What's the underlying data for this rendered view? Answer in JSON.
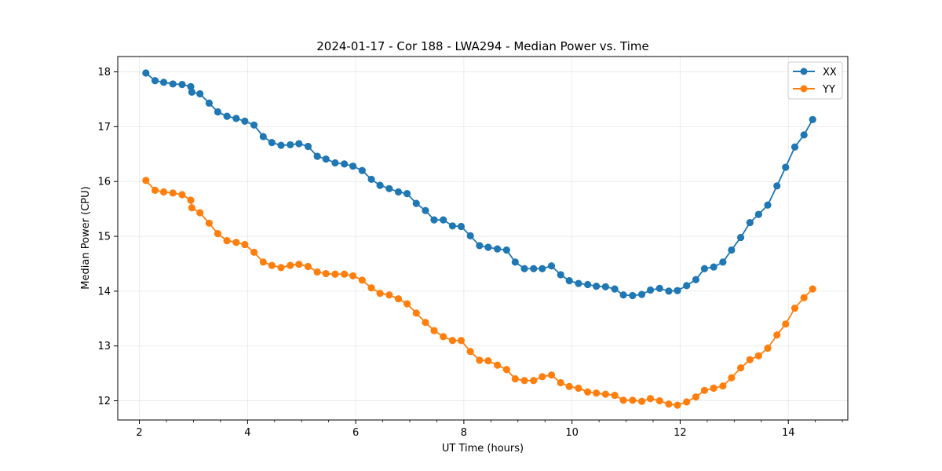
{
  "chart_data": {
    "type": "line",
    "title": "2024-01-17 - Cor 188 - LWA294 - Median Power vs. Time",
    "xlabel": "UT Time (hours)",
    "ylabel": "Median Power (CPU)",
    "xlim": [
      1.6,
      15.1
    ],
    "ylim": [
      11.65,
      18.28
    ],
    "xticks": [
      2,
      4,
      6,
      8,
      10,
      12,
      14
    ],
    "yticks": [
      12,
      13,
      14,
      15,
      16,
      17,
      18
    ],
    "xtick_labels": [
      "2",
      "4",
      "6",
      "8",
      "10",
      "12",
      "14"
    ],
    "ytick_labels": [
      "12",
      "13",
      "14",
      "15",
      "16",
      "17",
      "18"
    ],
    "grid": true,
    "legend_position": "top-right",
    "x": [
      2.12,
      2.29,
      2.45,
      2.62,
      2.79,
      2.95,
      2.97,
      3.12,
      3.29,
      3.45,
      3.62,
      3.79,
      3.95,
      4.12,
      4.29,
      4.45,
      4.62,
      4.79,
      4.95,
      5.12,
      5.29,
      5.45,
      5.62,
      5.79,
      5.95,
      6.12,
      6.29,
      6.45,
      6.62,
      6.79,
      6.95,
      7.12,
      7.29,
      7.45,
      7.62,
      7.79,
      7.95,
      8.12,
      8.29,
      8.45,
      8.62,
      8.79,
      8.95,
      9.12,
      9.29,
      9.45,
      9.62,
      9.79,
      9.95,
      10.12,
      10.29,
      10.45,
      10.62,
      10.79,
      10.95,
      11.12,
      11.29,
      11.45,
      11.62,
      11.79,
      11.95,
      12.12,
      12.29,
      12.45,
      12.62,
      12.79,
      12.95,
      13.12,
      13.29,
      13.45,
      13.62,
      13.79,
      13.95,
      14.12,
      14.29,
      14.45
    ],
    "series": [
      {
        "name": "XX",
        "color": "#1f77b4",
        "values": [
          17.98,
          17.84,
          17.81,
          17.78,
          17.77,
          17.73,
          17.63,
          17.6,
          17.43,
          17.27,
          17.19,
          17.15,
          17.1,
          17.03,
          16.82,
          16.71,
          16.66,
          16.67,
          16.69,
          16.64,
          16.46,
          16.41,
          16.34,
          16.32,
          16.28,
          16.2,
          16.04,
          15.93,
          15.87,
          15.81,
          15.78,
          15.6,
          15.47,
          15.3,
          15.3,
          15.19,
          15.18,
          15.01,
          14.83,
          14.8,
          14.77,
          14.75,
          14.53,
          14.41,
          14.41,
          14.41,
          14.46,
          14.3,
          14.19,
          14.14,
          14.12,
          14.09,
          14.08,
          14.04,
          13.93,
          13.92,
          13.94,
          14.02,
          14.05,
          14.0,
          14.01,
          14.1,
          14.21,
          14.41,
          14.44,
          14.53,
          14.75,
          14.98,
          15.25,
          15.4,
          15.57,
          15.92,
          16.26,
          16.63,
          16.85,
          17.13
        ]
      },
      {
        "name": "YY",
        "color": "#ff7f0e",
        "values": [
          16.02,
          15.84,
          15.81,
          15.79,
          15.76,
          15.66,
          15.52,
          15.43,
          15.24,
          15.05,
          14.92,
          14.89,
          14.85,
          14.71,
          14.53,
          14.47,
          14.43,
          14.47,
          14.49,
          14.45,
          14.35,
          14.32,
          14.31,
          14.31,
          14.28,
          14.2,
          14.06,
          13.96,
          13.93,
          13.86,
          13.77,
          13.6,
          13.43,
          13.28,
          13.17,
          13.1,
          13.1,
          12.9,
          12.74,
          12.73,
          12.65,
          12.57,
          12.4,
          12.37,
          12.37,
          12.44,
          12.47,
          12.33,
          12.26,
          12.23,
          12.16,
          12.14,
          12.12,
          12.1,
          12.01,
          12.01,
          11.99,
          12.04,
          12.0,
          11.94,
          11.92,
          11.98,
          12.07,
          12.19,
          12.23,
          12.27,
          12.42,
          12.6,
          12.75,
          12.82,
          12.96,
          13.2,
          13.4,
          13.69,
          13.88,
          14.04
        ]
      }
    ]
  }
}
